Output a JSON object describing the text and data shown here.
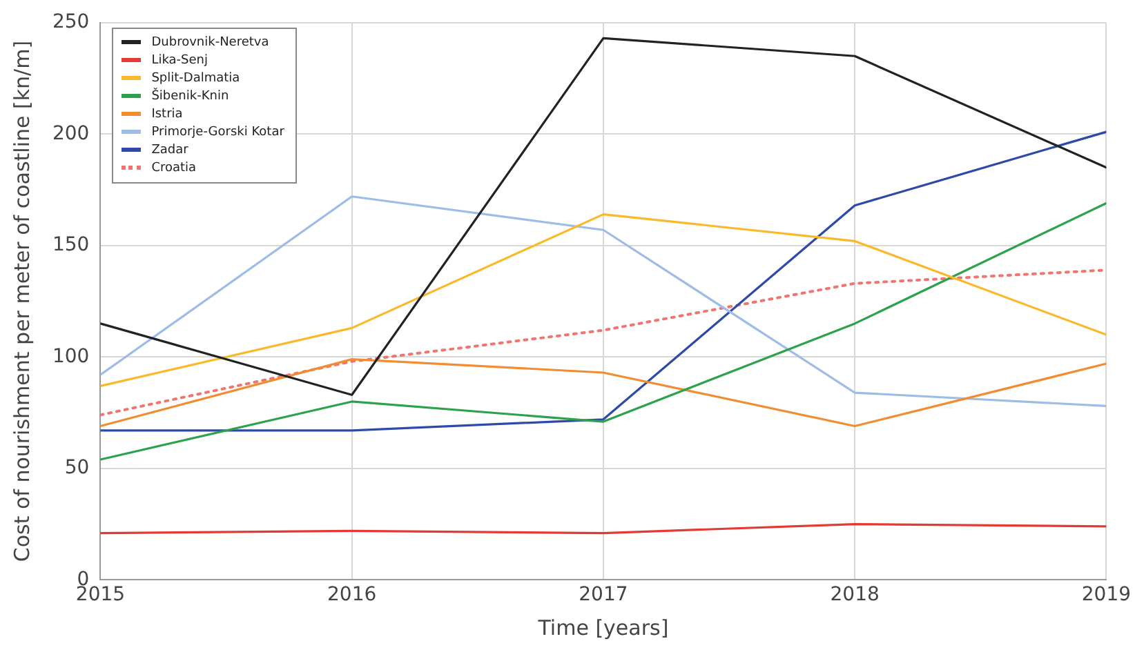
{
  "chart_data": {
    "type": "line",
    "xlabel": "Time [years]",
    "ylabel": "Cost of nourishment per meter of coastline [kn/m]",
    "x": [
      2015,
      2016,
      2017,
      2018,
      2019
    ],
    "xlim": [
      2015,
      2019
    ],
    "xticks": [
      2015,
      2016,
      2017,
      2018,
      2019
    ],
    "ylim": [
      0,
      250
    ],
    "yticks": [
      0,
      50,
      100,
      150,
      200,
      250
    ],
    "grid": true,
    "legend": "top left",
    "marker": "none",
    "series": [
      {
        "name": "Dubrovnik-Neretva",
        "color": "#222222",
        "values": [
          115,
          83,
          243,
          235,
          185
        ]
      },
      {
        "name": "Lika-Senj",
        "color": "#e53935",
        "values": [
          21,
          22,
          21,
          25,
          24
        ]
      },
      {
        "name": "Split-Dalmatia",
        "color": "#f9b92a",
        "values": [
          87,
          113,
          164,
          152,
          110
        ]
      },
      {
        "name": "Šibenik-Knin",
        "color": "#2ca24c",
        "values": [
          54,
          80,
          71,
          115,
          169
        ]
      },
      {
        "name": "Istria",
        "color": "#f28c30",
        "values": [
          69,
          99,
          93,
          69,
          97
        ]
      },
      {
        "name": "Primorje-Gorski Kotar",
        "color": "#9dbde6",
        "values": [
          92,
          172,
          157,
          84,
          78
        ]
      },
      {
        "name": "Zadar",
        "color": "#2e4aa8",
        "values": [
          67,
          67,
          72,
          168,
          201
        ]
      },
      {
        "name": "Croatia",
        "color": "#f07470",
        "values": [
          74,
          98,
          112,
          133,
          139
        ],
        "line_style": "dotted"
      }
    ]
  }
}
